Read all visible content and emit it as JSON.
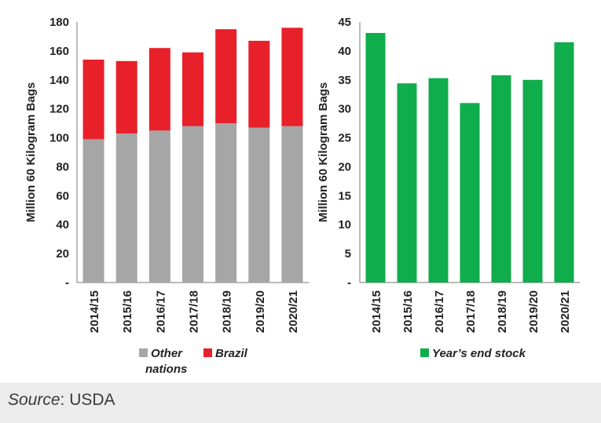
{
  "chart_data": [
    {
      "type": "bar",
      "stacked": true,
      "categories": [
        "2014/15",
        "2015/16",
        "2016/17",
        "2017/18",
        "2018/19",
        "2019/20",
        "2020/21"
      ],
      "series": [
        {
          "name": "Other nations",
          "color": "#a6a6a6",
          "values": [
            99,
            103,
            105,
            108,
            110,
            107,
            108
          ]
        },
        {
          "name": "Brazil",
          "color": "#e8202a",
          "values": [
            55,
            50,
            57,
            51,
            65,
            60,
            68
          ]
        }
      ],
      "ylabel": "Million 60 Kilogram Bags",
      "ylim": [
        0,
        180
      ],
      "yticks": [
        "-",
        "20",
        "40",
        "60",
        "80",
        "100",
        "120",
        "140",
        "160",
        "180"
      ],
      "grid": false,
      "legend_placement": "bottom"
    },
    {
      "type": "bar",
      "categories": [
        "2014/15",
        "2015/16",
        "2016/17",
        "2017/18",
        "2018/19",
        "2019/20",
        "2020/21"
      ],
      "series": [
        {
          "name": "Year’s end stock",
          "color": "#0fad4b",
          "values": [
            43.1,
            34.4,
            35.3,
            31.0,
            35.8,
            35.0,
            41.5
          ]
        }
      ],
      "ylabel": "Million 60 Kilogram Bags",
      "ylim": [
        0,
        45
      ],
      "yticks": [
        "-",
        "5",
        "10",
        "15",
        "20",
        "25",
        "30",
        "35",
        "40",
        "45"
      ],
      "grid": false,
      "legend_placement": "bottom"
    }
  ],
  "source": {
    "label": "Source",
    "text": ": USDA"
  }
}
